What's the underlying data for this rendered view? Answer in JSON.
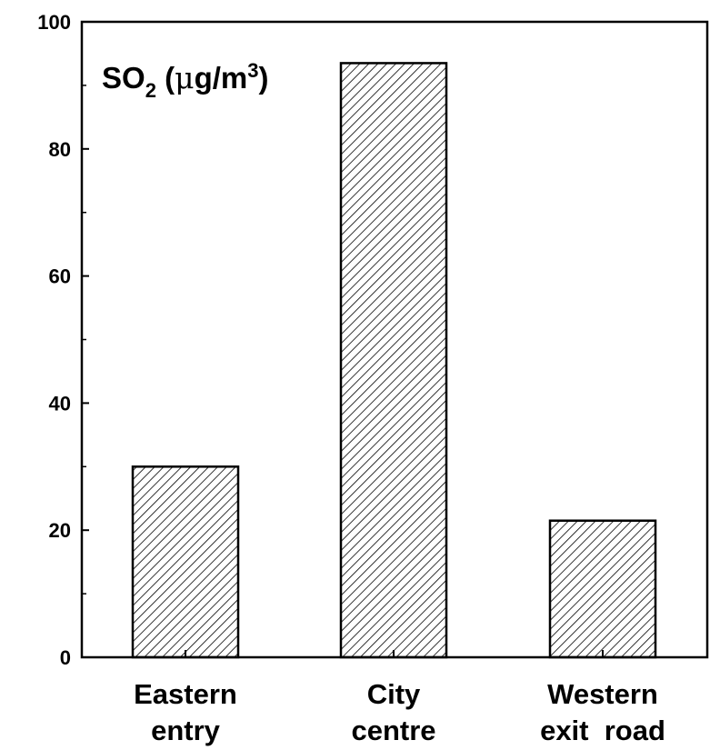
{
  "chart_data": {
    "type": "bar",
    "title_parts": {
      "main": "SO",
      "sub": "2",
      "open": " (",
      "mu": "μ",
      "unit": "g/m",
      "sup": "3",
      "close": ")"
    },
    "categories": [
      [
        "Eastern",
        "entry"
      ],
      [
        "City",
        "centre"
      ],
      [
        "Western",
        "exit  road"
      ]
    ],
    "values": [
      30,
      93.5,
      21.5
    ],
    "ylim": [
      0,
      100
    ],
    "yticks": [
      0,
      20,
      40,
      60,
      80,
      100
    ],
    "yminor_step": 10,
    "bar_fill": "hatched",
    "colors": {
      "ink": "#000000",
      "background": "#ffffff"
    }
  }
}
